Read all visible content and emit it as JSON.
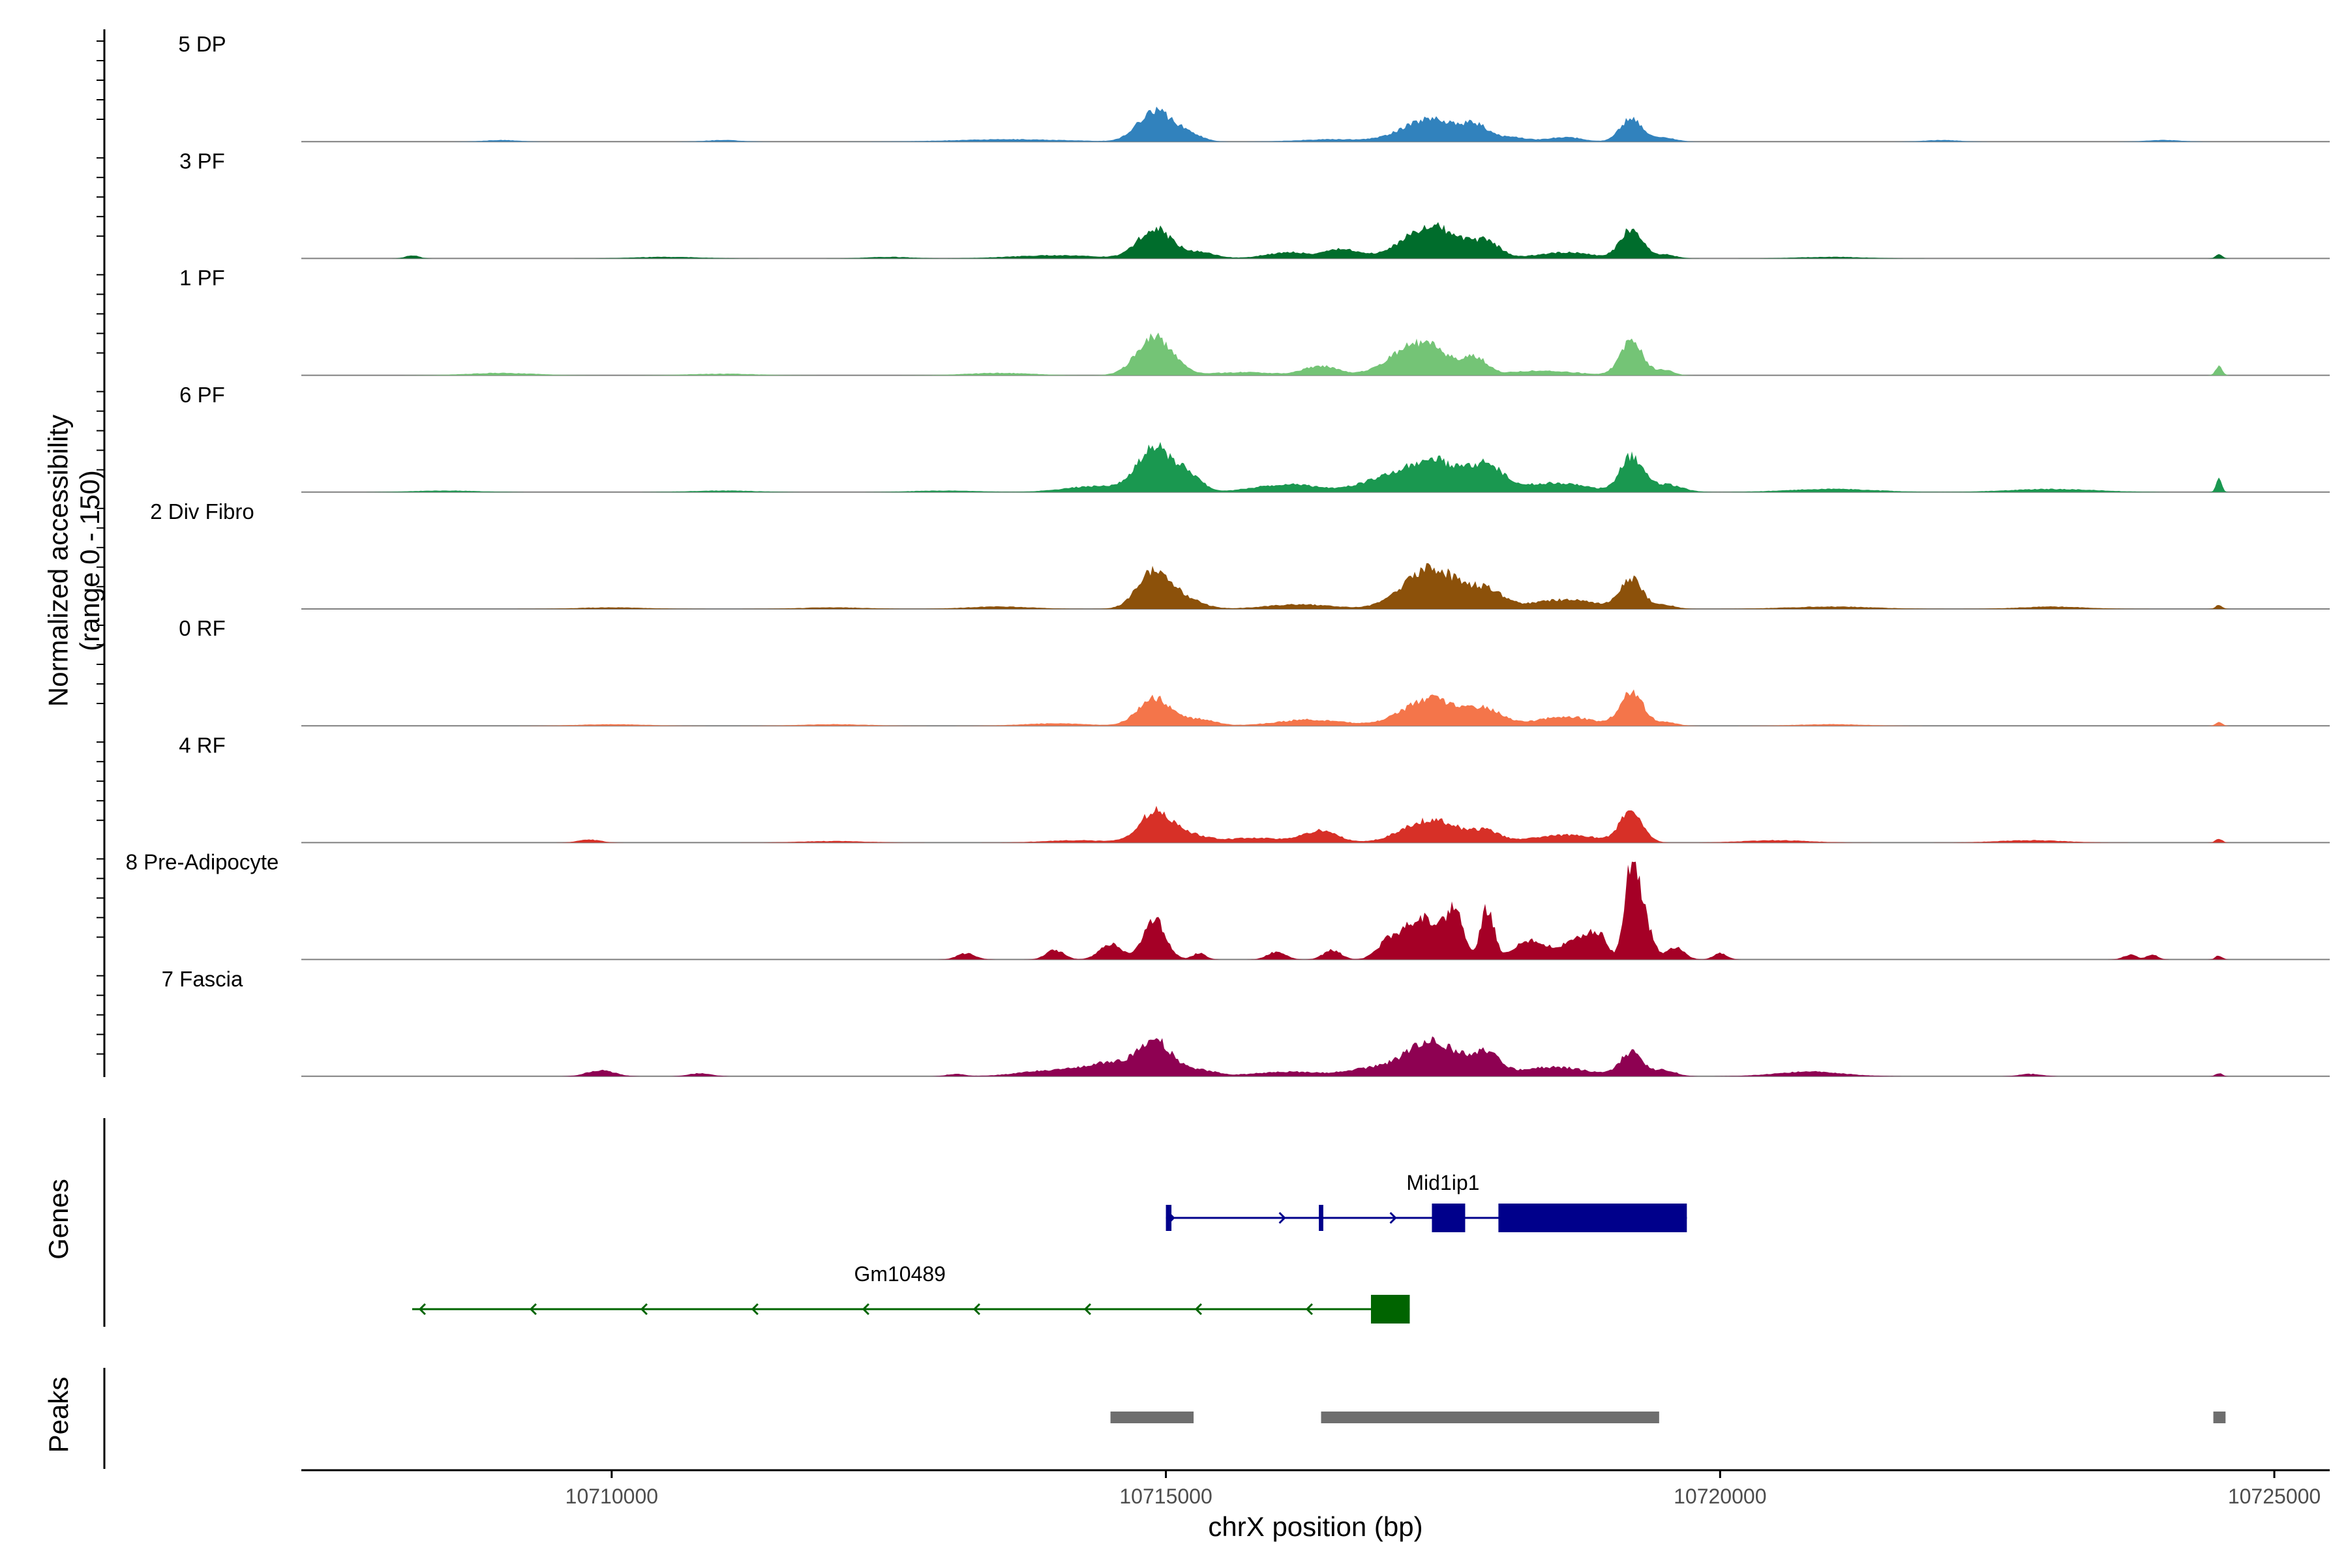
{
  "chart_data": {
    "type": "area",
    "title": "",
    "ylabel": "Normalized accessibility\n(range 0 - 150)",
    "ylim": [
      0,
      150
    ],
    "xlabel": "chrX position (bp)",
    "xlim": [
      10707200,
      10725500
    ],
    "xticks": [
      10710000,
      10715000,
      10720000,
      10725000
    ],
    "xtick_labels": [
      "10710000",
      "10715000",
      "10720000",
      "10725000"
    ],
    "tracks": [
      {
        "name": "5 DP",
        "color": "#3182bd",
        "peaks": [
          [
            10713600,
            3,
            500
          ],
          [
            10714900,
            40,
            150
          ],
          [
            10715200,
            10,
            120
          ],
          [
            10716500,
            3,
            300
          ],
          [
            10717400,
            30,
            250
          ],
          [
            10717800,
            15,
            100
          ],
          [
            10718100,
            6,
            150
          ],
          [
            10718600,
            6,
            150
          ],
          [
            10719200,
            30,
            100
          ],
          [
            10719500,
            5,
            100
          ],
          [
            10709000,
            2,
            150
          ],
          [
            10711000,
            2,
            150
          ],
          [
            10722000,
            2,
            150
          ],
          [
            10724000,
            2,
            150
          ]
        ]
      },
      {
        "name": "3 PF",
        "color": "#006d2c",
        "peaks": [
          [
            10714000,
            4,
            400
          ],
          [
            10714900,
            38,
            150
          ],
          [
            10715300,
            8,
            150
          ],
          [
            10716100,
            8,
            200
          ],
          [
            10716600,
            12,
            150
          ],
          [
            10717400,
            42,
            250
          ],
          [
            10717900,
            18,
            120
          ],
          [
            10718600,
            8,
            250
          ],
          [
            10719200,
            38,
            100
          ],
          [
            10719500,
            5,
            100
          ],
          [
            10708200,
            4,
            60
          ],
          [
            10710500,
            2,
            300
          ],
          [
            10712500,
            2,
            200
          ],
          [
            10721000,
            2,
            300
          ],
          [
            10724500,
            5,
            30
          ]
        ]
      },
      {
        "name": "1 PF",
        "color": "#74c476",
        "peaks": [
          [
            10714900,
            50,
            160
          ],
          [
            10716400,
            12,
            150
          ],
          [
            10717300,
            42,
            250
          ],
          [
            10717800,
            18,
            100
          ],
          [
            10718400,
            6,
            300
          ],
          [
            10719200,
            45,
            100
          ],
          [
            10719500,
            7,
            80
          ],
          [
            10709000,
            3,
            300
          ],
          [
            10711000,
            2,
            300
          ],
          [
            10713500,
            3,
            300
          ],
          [
            10715700,
            4,
            300
          ],
          [
            10724500,
            12,
            30
          ]
        ]
      },
      {
        "name": "6 PF",
        "color": "#1a9850",
        "peaks": [
          [
            10714900,
            55,
            150
          ],
          [
            10715200,
            22,
            120
          ],
          [
            10714400,
            8,
            300
          ],
          [
            10716100,
            10,
            300
          ],
          [
            10716900,
            12,
            200
          ],
          [
            10717400,
            42,
            250
          ],
          [
            10717900,
            30,
            150
          ],
          [
            10718500,
            12,
            300
          ],
          [
            10719200,
            45,
            100
          ],
          [
            10719500,
            10,
            150
          ],
          [
            10721000,
            4,
            400
          ],
          [
            10723000,
            4,
            400
          ],
          [
            10724500,
            18,
            25
          ],
          [
            10708500,
            2,
            300
          ],
          [
            10711000,
            2,
            300
          ],
          [
            10713000,
            2,
            300
          ]
        ]
      },
      {
        "name": "2 Div Fibro",
        "color": "#8c510a",
        "peaks": [
          [
            10714900,
            50,
            150
          ],
          [
            10715200,
            10,
            150
          ],
          [
            10716200,
            6,
            300
          ],
          [
            10717400,
            52,
            250
          ],
          [
            10717900,
            20,
            150
          ],
          [
            10718600,
            12,
            300
          ],
          [
            10719200,
            38,
            100
          ],
          [
            10719500,
            5,
            100
          ],
          [
            10710000,
            2,
            300
          ],
          [
            10712000,
            2,
            300
          ],
          [
            10713500,
            3,
            300
          ],
          [
            10721000,
            3,
            400
          ],
          [
            10723000,
            3,
            300
          ],
          [
            10724500,
            5,
            30
          ]
        ]
      },
      {
        "name": "0 RF",
        "color": "#f4754a",
        "peaks": [
          [
            10714900,
            35,
            150
          ],
          [
            10715300,
            8,
            150
          ],
          [
            10716300,
            8,
            300
          ],
          [
            10717400,
            35,
            250
          ],
          [
            10717900,
            18,
            150
          ],
          [
            10718600,
            12,
            250
          ],
          [
            10719200,
            45,
            100
          ],
          [
            10719500,
            5,
            100
          ],
          [
            10714000,
            3,
            300
          ],
          [
            10710000,
            2,
            300
          ],
          [
            10712000,
            2,
            300
          ],
          [
            10721000,
            2,
            300
          ],
          [
            10724500,
            5,
            30
          ]
        ]
      },
      {
        "name": "4 RF",
        "color": "#d73027",
        "peaks": [
          [
            10714900,
            40,
            140
          ],
          [
            10715200,
            10,
            150
          ],
          [
            10715800,
            6,
            300
          ],
          [
            10716400,
            15,
            150
          ],
          [
            10717400,
            30,
            250
          ],
          [
            10717900,
            12,
            120
          ],
          [
            10718600,
            10,
            300
          ],
          [
            10719200,
            40,
            100
          ],
          [
            10714200,
            3,
            300
          ],
          [
            10709800,
            4,
            100
          ],
          [
            10712000,
            2,
            300
          ],
          [
            10720500,
            3,
            300
          ],
          [
            10722800,
            3,
            300
          ],
          [
            10724500,
            5,
            30
          ]
        ]
      },
      {
        "name": "8 Pre-Adipocyte",
        "color": "#a50026",
        "peaks": [
          [
            10714900,
            50,
            100
          ],
          [
            10714500,
            20,
            100
          ],
          [
            10714000,
            12,
            80
          ],
          [
            10715300,
            8,
            60
          ],
          [
            10716000,
            10,
            80
          ],
          [
            10716500,
            12,
            80
          ],
          [
            10717000,
            20,
            100
          ],
          [
            10717300,
            55,
            150
          ],
          [
            10717600,
            60,
            80
          ],
          [
            10717900,
            65,
            60
          ],
          [
            10718300,
            25,
            150
          ],
          [
            10718700,
            25,
            120
          ],
          [
            10718900,
            30,
            80
          ],
          [
            10719200,
            110,
            60
          ],
          [
            10719300,
            55,
            80
          ],
          [
            10719600,
            15,
            80
          ],
          [
            10720000,
            8,
            60
          ],
          [
            10713200,
            8,
            80
          ],
          [
            10723700,
            6,
            60
          ],
          [
            10723900,
            6,
            50
          ],
          [
            10724500,
            5,
            30
          ]
        ]
      },
      {
        "name": "7 Fascia",
        "color": "#8e0152",
        "peaks": [
          [
            10714900,
            45,
            150
          ],
          [
            10714500,
            15,
            200
          ],
          [
            10714000,
            8,
            300
          ],
          [
            10715300,
            8,
            150
          ],
          [
            10716100,
            6,
            300
          ],
          [
            10716800,
            8,
            200
          ],
          [
            10717400,
            45,
            250
          ],
          [
            10717900,
            25,
            120
          ],
          [
            10718500,
            12,
            300
          ],
          [
            10719200,
            30,
            100
          ],
          [
            10719500,
            8,
            100
          ],
          [
            10709900,
            8,
            120
          ],
          [
            10710800,
            4,
            100
          ],
          [
            10713100,
            3,
            80
          ],
          [
            10720800,
            6,
            300
          ],
          [
            10722800,
            3,
            100
          ],
          [
            10724500,
            4,
            30
          ]
        ]
      }
    ],
    "genes": [
      {
        "name": "Mid1ip1",
        "strand": "+",
        "color": "#00008b",
        "start": 10715000,
        "end": 10719700,
        "exons": [
          [
            10715000,
            10715050
          ],
          [
            10716380,
            10716420
          ],
          [
            10717400,
            10717700
          ],
          [
            10718000,
            10719700
          ]
        ]
      },
      {
        "name": "Gm10489",
        "strand": "-",
        "color": "#006400",
        "start": 10708200,
        "end": 10717200,
        "exons": [
          [
            10716850,
            10717200
          ]
        ]
      }
    ],
    "peak_regions": [
      [
        10714500,
        10715250
      ],
      [
        10716400,
        10719450
      ],
      [
        10724450,
        10724560
      ]
    ],
    "panel_titles": {
      "genes": "Genes",
      "peaks": "Peaks"
    }
  }
}
